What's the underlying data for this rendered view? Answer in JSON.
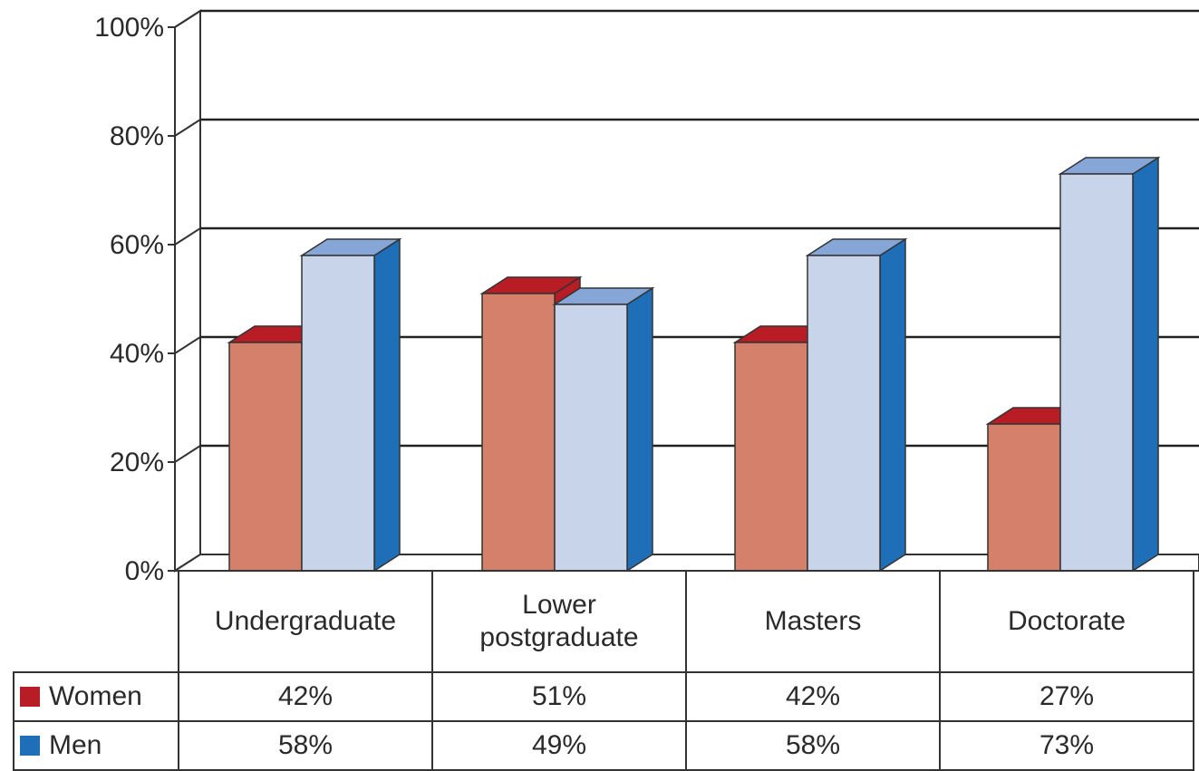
{
  "chart_data": {
    "type": "bar",
    "categories": [
      "Undergraduate",
      "Lower postgraduate",
      "Masters",
      "Doctorate"
    ],
    "category_lines": [
      [
        "Undergraduate"
      ],
      [
        "Lower",
        "postgraduate"
      ],
      [
        "Masters"
      ],
      [
        "Doctorate"
      ]
    ],
    "series": [
      {
        "name": "Women",
        "values": [
          42,
          51,
          42,
          27
        ],
        "value_labels": [
          "42%",
          "51%",
          "42%",
          "27%"
        ],
        "colors": {
          "front": "#d4806a",
          "top": "#b81c24",
          "side": "#b81c24",
          "swatch": "#b81c24"
        }
      },
      {
        "name": "Men",
        "values": [
          58,
          49,
          58,
          73
        ],
        "value_labels": [
          "58%",
          "49%",
          "58%",
          "73%"
        ],
        "colors": {
          "front": "#c8d4ea",
          "top": "#86a6d8",
          "side": "#1e6eb8",
          "swatch": "#1e6eb8"
        }
      }
    ],
    "y_ticks": [
      "0%",
      "20%",
      "40%",
      "60%",
      "80%",
      "100%"
    ],
    "ylim": [
      0,
      100
    ],
    "grid": true,
    "legend": "data-table-left",
    "style": "3d-column"
  }
}
